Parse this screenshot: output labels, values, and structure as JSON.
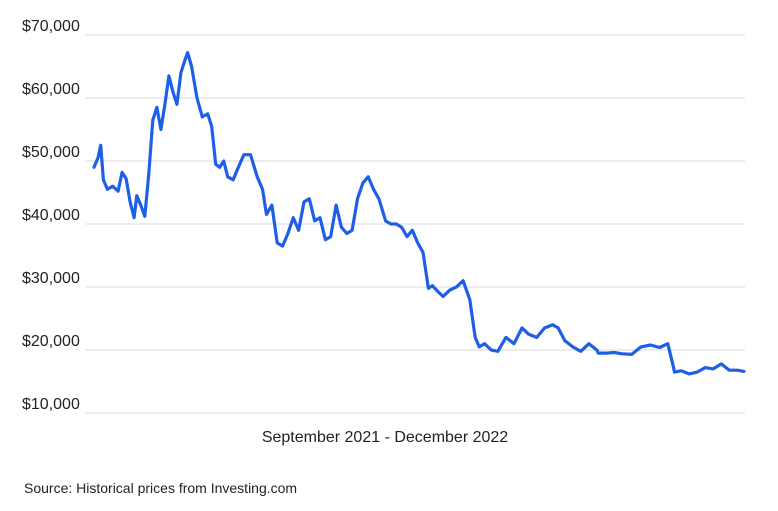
{
  "chart_data": {
    "type": "line",
    "title": "",
    "xlabel": "September 2021 - December 2022",
    "ylabel": "",
    "ylim": [
      10000,
      70000
    ],
    "y_ticks": [
      70000,
      60000,
      50000,
      40000,
      30000,
      20000,
      10000
    ],
    "y_tick_labels": [
      "$70,000",
      "$60,000",
      "$50,000",
      "$40,000",
      "$30,000",
      "$20,000",
      "$10,000"
    ],
    "x_range": [
      "2021-09-01",
      "2022-12-31"
    ],
    "grid": "horizontal",
    "line_color": "#1f5fe6",
    "grid_color": "#d9d9d9",
    "series": [
      {
        "x": [
          "2021-09-01",
          "2021-09-04",
          "2021-09-06",
          "2021-09-08",
          "2021-09-11",
          "2021-09-15",
          "2021-09-19",
          "2021-09-22",
          "2021-09-25",
          "2021-09-28",
          "2021-10-01",
          "2021-10-03",
          "2021-10-06",
          "2021-10-09",
          "2021-10-12",
          "2021-10-15",
          "2021-10-18",
          "2021-10-21",
          "2021-10-24",
          "2021-10-27",
          "2021-10-30",
          "2021-11-02",
          "2021-11-05",
          "2021-11-08",
          "2021-11-10",
          "2021-11-13",
          "2021-11-17",
          "2021-11-21",
          "2021-11-25",
          "2021-11-28",
          "2021-12-01",
          "2021-12-04",
          "2021-12-07",
          "2021-12-10",
          "2021-12-14",
          "2021-12-18",
          "2021-12-22",
          "2021-12-27",
          "2022-01-01",
          "2022-01-05",
          "2022-01-08",
          "2022-01-12",
          "2022-01-16",
          "2022-01-20",
          "2022-01-24",
          "2022-01-28",
          "2022-02-01",
          "2022-02-05",
          "2022-02-09",
          "2022-02-13",
          "2022-02-17",
          "2022-02-21",
          "2022-02-25",
          "2022-03-01",
          "2022-03-05",
          "2022-03-09",
          "2022-03-13",
          "2022-03-17",
          "2022-03-21",
          "2022-03-25",
          "2022-03-29",
          "2022-04-02",
          "2022-04-07",
          "2022-04-11",
          "2022-04-15",
          "2022-04-19",
          "2022-04-23",
          "2022-04-27",
          "2022-05-01",
          "2022-05-05",
          "2022-05-09",
          "2022-05-12",
          "2022-05-16",
          "2022-05-20",
          "2022-05-25",
          "2022-05-30",
          "2022-06-04",
          "2022-06-09",
          "2022-06-13",
          "2022-06-16",
          "2022-06-20",
          "2022-06-25",
          "2022-06-30",
          "2022-07-06",
          "2022-07-12",
          "2022-07-18",
          "2022-07-23",
          "2022-07-29",
          "2022-08-04",
          "2022-08-10",
          "2022-08-14",
          "2022-08-19",
          "2022-08-25",
          "2022-08-31",
          "2022-09-06",
          "2022-09-12",
          "2022-09-13",
          "2022-09-19",
          "2022-09-25",
          "2022-10-01",
          "2022-10-08",
          "2022-10-15",
          "2022-10-22",
          "2022-10-29",
          "2022-11-04",
          "2022-11-08",
          "2022-11-09",
          "2022-11-14",
          "2022-11-20",
          "2022-11-26",
          "2022-12-02",
          "2022-12-08",
          "2022-12-14",
          "2022-12-20",
          "2022-12-26",
          "2022-12-31"
        ],
        "y": [
          49000,
          50500,
          52500,
          47000,
          45500,
          46000,
          45200,
          48200,
          47200,
          43500,
          41000,
          44500,
          43000,
          41200,
          48000,
          56500,
          58500,
          55000,
          59000,
          63500,
          61000,
          59000,
          64000,
          66000,
          67200,
          65000,
          60000,
          57000,
          57500,
          55500,
          49500,
          49000,
          50000,
          47500,
          47000,
          49000,
          51000,
          51000,
          47500,
          45500,
          41500,
          43000,
          37000,
          36500,
          38500,
          41000,
          39000,
          43500,
          44000,
          40500,
          41000,
          37500,
          38000,
          43000,
          39500,
          38500,
          39000,
          44000,
          46500,
          47500,
          45500,
          44000,
          40500,
          40000,
          40000,
          39500,
          38000,
          39000,
          37000,
          35500,
          29800,
          30200,
          29300,
          28500,
          29500,
          30000,
          31000,
          28000,
          22000,
          20500,
          21000,
          20000,
          19800,
          22000,
          21000,
          23500,
          22500,
          22000,
          23500,
          24000,
          23500,
          21500,
          20500,
          19800,
          21000,
          20000,
          19500,
          19500,
          19600,
          19400,
          19300,
          20500,
          20800,
          20400,
          21000,
          17500,
          16500,
          16700,
          16200,
          16500,
          17200,
          17000,
          17800,
          16800,
          16800,
          16600
        ]
      }
    ],
    "source": "Source: Historical prices from Investing.com"
  }
}
